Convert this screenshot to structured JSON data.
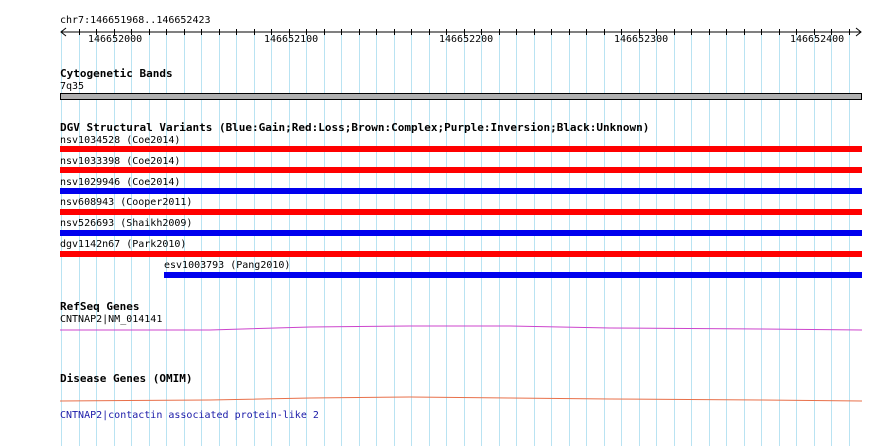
{
  "ruler": {
    "region": "chr7:146651968..146652423",
    "ticks": [
      "146652000",
      "146652100",
      "146652200",
      "146652300",
      "146652400"
    ]
  },
  "cytoband": {
    "title": "Cytogenetic Bands",
    "band": "7q35"
  },
  "dgv": {
    "title": "DGV Structural Variants (Blue:Gain;Red:Loss;Brown:Complex;Purple:Inversion;Black:Unknown)",
    "variants": [
      {
        "label": "nsv1034528 (Coe2014)",
        "color": "#ff0000"
      },
      {
        "label": "nsv1033398 (Coe2014)",
        "color": "#ff0000"
      },
      {
        "label": "nsv1029946 (Coe2014)",
        "color": "#0000ee"
      },
      {
        "label": "nsv608943 (Cooper2011)",
        "color": "#ff0000"
      },
      {
        "label": "nsv526693 (Shaikh2009)",
        "color": "#0000ee"
      },
      {
        "label": "dgv1142n67 (Park2010)",
        "color": "#ff0000"
      },
      {
        "label": "esv1003793 (Pang2010)",
        "color": "#0000ee"
      }
    ]
  },
  "refseq": {
    "title": "RefSeq Genes",
    "gene": "CNTNAP2|NM_014141",
    "color": "#cc44cc"
  },
  "omim": {
    "title": "Disease Genes (OMIM)",
    "gene": "CNTNAP2|contactin associated protein-like 2",
    "color": "#e8704a"
  }
}
